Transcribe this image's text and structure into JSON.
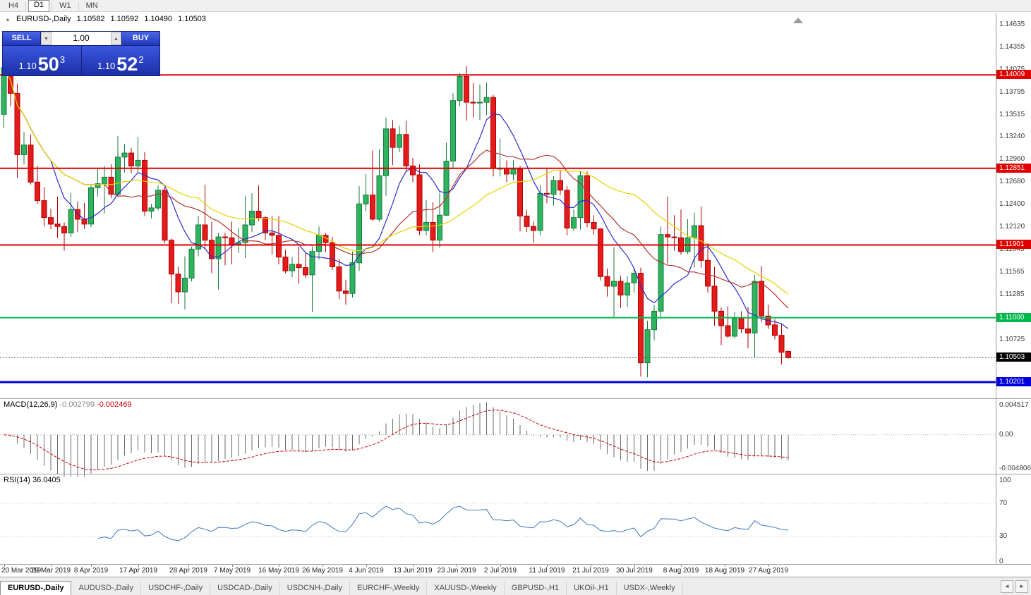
{
  "toolbar": {
    "timeframes": [
      {
        "label": "H4",
        "active": false
      },
      {
        "label": "D1",
        "active": true
      },
      {
        "label": "W1",
        "active": false
      },
      {
        "label": "MN",
        "active": false
      }
    ]
  },
  "chart_header": {
    "collapse_icon": "▲",
    "symbol": "EURUSD-,Daily",
    "open": "1.10582",
    "high": "1.10592",
    "low": "1.10490",
    "close": "1.10503"
  },
  "trade_panel": {
    "sell": "SELL",
    "buy": "BUY",
    "volume": "1.00",
    "spin_down_icon": "▼",
    "spin_up_icon": "▲",
    "bid": {
      "prefix": "1.10",
      "big": "50",
      "sup": "3"
    },
    "ask": {
      "prefix": "1.10",
      "big": "52",
      "sup": "2"
    }
  },
  "chart_data": {
    "type": "candlestick",
    "symbol": "EURUSD",
    "timeframe": "Daily",
    "price_range": {
      "min": 1.1,
      "max": 1.1478
    },
    "colors": {
      "bull": "#2fb35f",
      "bull_border": "#157a3c",
      "bear": "#e41b1b",
      "bear_border": "#b00000",
      "ma_fast": "#2a2ad0",
      "ma_mid": "#b83232",
      "ma_slow": "#e3d400"
    },
    "y_axis_labels": [
      "1.14635",
      "1.14355",
      "1.14075",
      "1.13795",
      "1.13515",
      "1.13240",
      "1.12960",
      "1.12680",
      "1.12400",
      "1.12120",
      "1.11845",
      "1.11565",
      "1.11285",
      "1.10725"
    ],
    "levels": [
      {
        "value": 1.14009,
        "label": "1.14009",
        "color": "#e00000",
        "width": 2
      },
      {
        "value": 1.12851,
        "label": "1.12851",
        "color": "#e00000",
        "width": 2
      },
      {
        "value": 1.11901,
        "label": "1.11901",
        "color": "#e00000",
        "width": 2
      },
      {
        "value": 1.11,
        "label": "1.11000",
        "color": "#00b84a",
        "width": 2
      },
      {
        "value": 1.10201,
        "label": "1.10201",
        "color": "#0000dd",
        "width": 3
      }
    ],
    "current_price": {
      "value": 1.10503,
      "label": "1.10503",
      "color": "#000000"
    },
    "moving_averages": [
      {
        "period": 8,
        "color": "#2a2ad0"
      },
      {
        "period": 16,
        "color": "#b83232"
      },
      {
        "period": 30,
        "color": "#e3d400"
      }
    ],
    "x_labels": [
      {
        "label": "20 Mar 2019",
        "i": 0
      },
      {
        "label": "29 Mar 2019",
        "i": 7
      },
      {
        "label": "8 Apr 2019",
        "i": 13
      },
      {
        "label": "17 Apr 2019",
        "i": 20
      },
      {
        "label": "28 Apr 2019",
        "i": 27.5
      },
      {
        "label": "7 May 2019",
        "i": 34
      },
      {
        "label": "16 May 2019",
        "i": 41
      },
      {
        "label": "26 May 2019",
        "i": 47.5
      },
      {
        "label": "4 Jun 2019",
        "i": 54
      },
      {
        "label": "13 Jun 2019",
        "i": 61
      },
      {
        "label": "23 Jun 2019",
        "i": 67.5
      },
      {
        "label": "2 Jul 2019",
        "i": 74
      },
      {
        "label": "11 Jul 2019",
        "i": 81
      },
      {
        "label": "21 Jul 2019",
        "i": 87.5
      },
      {
        "label": "30 Jul 2019",
        "i": 94
      },
      {
        "label": "8 Aug 2019",
        "i": 101
      },
      {
        "label": "18 Aug 2019",
        "i": 107.5
      },
      {
        "label": "27 Aug 2019",
        "i": 114
      }
    ],
    "candles": [
      [
        1.1352,
        1.1437,
        1.1335,
        1.141
      ],
      [
        1.141,
        1.1438,
        1.1362,
        1.1378
      ],
      [
        1.1378,
        1.139,
        1.1273,
        1.1302
      ],
      [
        1.1302,
        1.133,
        1.129,
        1.1314
      ],
      [
        1.1314,
        1.1327,
        1.1265,
        1.1268
      ],
      [
        1.1268,
        1.1288,
        1.1241,
        1.1245
      ],
      [
        1.1245,
        1.1262,
        1.1213,
        1.1224
      ],
      [
        1.1224,
        1.1235,
        1.121,
        1.1216
      ],
      [
        1.1216,
        1.125,
        1.1199,
        1.1213
      ],
      [
        1.1213,
        1.1218,
        1.1183,
        1.1205
      ],
      [
        1.1205,
        1.1255,
        1.12,
        1.1234
      ],
      [
        1.1234,
        1.1244,
        1.1206,
        1.1222
      ],
      [
        1.1222,
        1.1242,
        1.121,
        1.1216
      ],
      [
        1.1216,
        1.1264,
        1.1212,
        1.1261
      ],
      [
        1.1261,
        1.1285,
        1.125,
        1.1266
      ],
      [
        1.1266,
        1.1288,
        1.1229,
        1.1274
      ],
      [
        1.1274,
        1.129,
        1.1248,
        1.1253
      ],
      [
        1.1253,
        1.1325,
        1.1251,
        1.1299
      ],
      [
        1.1299,
        1.1315,
        1.128,
        1.1304
      ],
      [
        1.1304,
        1.131,
        1.1279,
        1.1288
      ],
      [
        1.1288,
        1.1324,
        1.128,
        1.1295
      ],
      [
        1.1295,
        1.1305,
        1.1226,
        1.1232
      ],
      [
        1.1232,
        1.1241,
        1.1223,
        1.1236
      ],
      [
        1.1236,
        1.1264,
        1.1233,
        1.1258
      ],
      [
        1.1258,
        1.1262,
        1.1192,
        1.1196
      ],
      [
        1.1196,
        1.1198,
        1.1118,
        1.1154
      ],
      [
        1.1154,
        1.1163,
        1.1117,
        1.1132
      ],
      [
        1.1132,
        1.1176,
        1.111,
        1.1149
      ],
      [
        1.1149,
        1.1188,
        1.1145,
        1.1185
      ],
      [
        1.1185,
        1.1226,
        1.1176,
        1.1215
      ],
      [
        1.1215,
        1.1265,
        1.1186,
        1.1196
      ],
      [
        1.1196,
        1.1219,
        1.1155,
        1.1173
      ],
      [
        1.1173,
        1.1205,
        1.1135,
        1.12
      ],
      [
        1.12,
        1.1205,
        1.1165,
        1.1199
      ],
      [
        1.1199,
        1.1219,
        1.1166,
        1.1191
      ],
      [
        1.1191,
        1.1211,
        1.118,
        1.1193
      ],
      [
        1.1193,
        1.1251,
        1.1174,
        1.1215
      ],
      [
        1.1215,
        1.1254,
        1.1206,
        1.1232
      ],
      [
        1.1232,
        1.1264,
        1.122,
        1.1224
      ],
      [
        1.1224,
        1.1226,
        1.1196,
        1.1205
      ],
      [
        1.1205,
        1.1226,
        1.1178,
        1.1202
      ],
      [
        1.1202,
        1.1226,
        1.1166,
        1.1175
      ],
      [
        1.1175,
        1.1184,
        1.1155,
        1.1158
      ],
      [
        1.1158,
        1.1175,
        1.115,
        1.1166
      ],
      [
        1.1166,
        1.1188,
        1.1142,
        1.1162
      ],
      [
        1.1162,
        1.118,
        1.1149,
        1.1153
      ],
      [
        1.1153,
        1.1188,
        1.1107,
        1.1182
      ],
      [
        1.1182,
        1.1213,
        1.1172,
        1.1202
      ],
      [
        1.1202,
        1.1205,
        1.1181,
        1.1193
      ],
      [
        1.1193,
        1.12,
        1.1159,
        1.1163
      ],
      [
        1.1163,
        1.1173,
        1.1123,
        1.1133
      ],
      [
        1.1133,
        1.1147,
        1.1116,
        1.113
      ],
      [
        1.113,
        1.1182,
        1.1125,
        1.1168
      ],
      [
        1.1168,
        1.1263,
        1.1158,
        1.1241
      ],
      [
        1.1241,
        1.1278,
        1.1232,
        1.1252
      ],
      [
        1.1252,
        1.1307,
        1.122,
        1.1222
      ],
      [
        1.1222,
        1.1309,
        1.1219,
        1.1276
      ],
      [
        1.1276,
        1.1348,
        1.1251,
        1.1334
      ],
      [
        1.1334,
        1.1345,
        1.1289,
        1.1311
      ],
      [
        1.1311,
        1.1338,
        1.1305,
        1.1327
      ],
      [
        1.1327,
        1.1344,
        1.1282,
        1.1288
      ],
      [
        1.1288,
        1.1298,
        1.1268,
        1.1277
      ],
      [
        1.1277,
        1.129,
        1.1202,
        1.1208
      ],
      [
        1.1208,
        1.1246,
        1.1202,
        1.1218
      ],
      [
        1.1218,
        1.1243,
        1.1181,
        1.1196
      ],
      [
        1.1196,
        1.1255,
        1.1187,
        1.1227
      ],
      [
        1.1227,
        1.1317,
        1.1226,
        1.1294
      ],
      [
        1.1294,
        1.1378,
        1.1285,
        1.1369
      ],
      [
        1.1369,
        1.1403,
        1.1362,
        1.1399
      ],
      [
        1.1399,
        1.1412,
        1.1344,
        1.1367
      ],
      [
        1.1367,
        1.1391,
        1.1348,
        1.1366
      ],
      [
        1.1366,
        1.1389,
        1.1345,
        1.1367
      ],
      [
        1.1367,
        1.1391,
        1.1351,
        1.1373
      ],
      [
        1.1373,
        1.1376,
        1.1275,
        1.1285
      ],
      [
        1.1285,
        1.1322,
        1.1275,
        1.1285
      ],
      [
        1.1285,
        1.1295,
        1.1268,
        1.1278
      ],
      [
        1.1278,
        1.1295,
        1.127,
        1.1284
      ],
      [
        1.1284,
        1.1288,
        1.1207,
        1.1226
      ],
      [
        1.1226,
        1.1234,
        1.1206,
        1.1213
      ],
      [
        1.1213,
        1.1219,
        1.1193,
        1.1208
      ],
      [
        1.1208,
        1.1264,
        1.1202,
        1.1254
      ],
      [
        1.1254,
        1.1285,
        1.1242,
        1.1253
      ],
      [
        1.1253,
        1.1275,
        1.1239,
        1.127
      ],
      [
        1.127,
        1.1283,
        1.1252,
        1.1258
      ],
      [
        1.1258,
        1.1263,
        1.1202,
        1.1211
      ],
      [
        1.1211,
        1.1234,
        1.1207,
        1.1224
      ],
      [
        1.1224,
        1.1282,
        1.1209,
        1.1276
      ],
      [
        1.1276,
        1.1281,
        1.1212,
        1.1218
      ],
      [
        1.1218,
        1.1227,
        1.1203,
        1.121
      ],
      [
        1.121,
        1.1211,
        1.1146,
        1.1151
      ],
      [
        1.1151,
        1.1161,
        1.1126,
        1.1139
      ],
      [
        1.1139,
        1.1187,
        1.1101,
        1.1145
      ],
      [
        1.1145,
        1.1152,
        1.1112,
        1.1128
      ],
      [
        1.1128,
        1.1151,
        1.1113,
        1.1143
      ],
      [
        1.1143,
        1.1162,
        1.1131,
        1.1155
      ],
      [
        1.1155,
        1.1162,
        1.1027,
        1.1044
      ],
      [
        1.1044,
        1.1096,
        1.1026,
        1.1085
      ],
      [
        1.1085,
        1.1116,
        1.1072,
        1.1108
      ],
      [
        1.1108,
        1.1213,
        1.1101,
        1.1203
      ],
      [
        1.1203,
        1.125,
        1.1167,
        1.12
      ],
      [
        1.12,
        1.1227,
        1.1183,
        1.1199
      ],
      [
        1.1199,
        1.1234,
        1.1178,
        1.1182
      ],
      [
        1.1182,
        1.1222,
        1.1179,
        1.1199
      ],
      [
        1.1199,
        1.123,
        1.1162,
        1.1214
      ],
      [
        1.1214,
        1.1238,
        1.1162,
        1.1171
      ],
      [
        1.1171,
        1.1192,
        1.1131,
        1.1139
      ],
      [
        1.1139,
        1.1163,
        1.109,
        1.1108
      ],
      [
        1.1108,
        1.1113,
        1.1066,
        1.109
      ],
      [
        1.109,
        1.1114,
        1.1075,
        1.1077
      ],
      [
        1.1077,
        1.1107,
        1.1074,
        1.1099
      ],
      [
        1.1099,
        1.1108,
        1.1081,
        1.1086
      ],
      [
        1.1086,
        1.1113,
        1.1062,
        1.1081
      ],
      [
        1.1081,
        1.1153,
        1.1051,
        1.1145
      ],
      [
        1.1145,
        1.1164,
        1.1094,
        1.1102
      ],
      [
        1.1102,
        1.1116,
        1.1086,
        1.1091
      ],
      [
        1.1091,
        1.1098,
        1.1073,
        1.1078
      ],
      [
        1.1078,
        1.1093,
        1.1042,
        1.1057
      ],
      [
        1.10582,
        1.10592,
        1.1049,
        1.10503
      ]
    ]
  },
  "macd_panel": {
    "title": "MACD(12,26,9)",
    "main_value": "-0.002799",
    "signal_value": "-0.002469",
    "params": {
      "fast": 12,
      "slow": 26,
      "signal": 9
    },
    "axis_labels": [
      {
        "label": "0.004517",
        "value": 0.004517
      },
      {
        "label": "0.00",
        "value": 0
      },
      {
        "label": "-0.004806",
        "value": -0.004806
      }
    ]
  },
  "rsi_panel": {
    "title": "RSI(14)",
    "value": "36.0405",
    "period": 14,
    "levels": [
      70,
      30
    ],
    "axis_labels": [
      {
        "label": "100",
        "value": 100
      },
      {
        "label": "70",
        "value": 70
      },
      {
        "label": "30",
        "value": 30
      },
      {
        "label": "0",
        "value": 0
      }
    ]
  },
  "tabs": {
    "scroll_left": "◄",
    "scroll_right": "►",
    "items": [
      {
        "label": "EURUSD-,Daily",
        "active": true
      },
      {
        "label": "AUDUSD-,Daily",
        "active": false
      },
      {
        "label": "USDCHF-,Daily",
        "active": false
      },
      {
        "label": "USDCAD-,Daily",
        "active": false
      },
      {
        "label": "USDCNH-,Daily",
        "active": false
      },
      {
        "label": "EURCHF-,Weekly",
        "active": false
      },
      {
        "label": "XAUUSD-,Weekly",
        "active": false
      },
      {
        "label": "GBPUSD-,H1",
        "active": false
      },
      {
        "label": "UKOil-,H1",
        "active": false
      },
      {
        "label": "USDX-,Weekly",
        "active": false
      }
    ]
  }
}
